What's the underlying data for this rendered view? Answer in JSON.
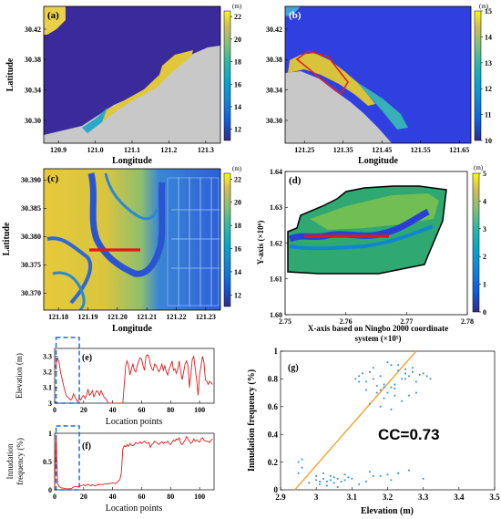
{
  "chart_data": [
    {
      "id": "a",
      "type": "heatmap",
      "panel_label": "(a)",
      "xlabel": "Longitude",
      "ylabel": "Latitude",
      "xlim": [
        120.86,
        121.34
      ],
      "ylim": [
        30.27,
        30.45
      ],
      "x_ticks": [
        "120.9",
        "121.0",
        "121.1",
        "121.2",
        "121.3"
      ],
      "x_tick_values": [
        120.9,
        121.0,
        121.1,
        121.2,
        121.3
      ],
      "y_ticks": [
        "30.42",
        "30.38",
        "30.34",
        "30.30"
      ],
      "y_tick_values": [
        30.42,
        30.38,
        30.34,
        30.3
      ],
      "colorbar": {
        "unit": "(m)",
        "min": 11,
        "max": 22.5,
        "ticks": [
          "22",
          "20",
          "18",
          "16",
          "14",
          "12"
        ],
        "tick_values": [
          22,
          20,
          18,
          16,
          14,
          12
        ]
      }
    },
    {
      "id": "b",
      "type": "heatmap",
      "panel_label": "(b)",
      "xlabel": "Longitude",
      "ylabel": "",
      "xlim": [
        121.2,
        121.68
      ],
      "ylim": [
        30.27,
        30.45
      ],
      "x_ticks": [
        "121.25",
        "121.35",
        "121.45",
        "121.55",
        "121.65"
      ],
      "x_tick_values": [
        121.25,
        121.35,
        121.45,
        121.55,
        121.65
      ],
      "y_ticks": [
        "30.42",
        "30.38",
        "30.34",
        "30.30"
      ],
      "y_tick_values": [
        30.42,
        30.38,
        30.34,
        30.3
      ],
      "colorbar": {
        "unit": "(m)",
        "min": 10,
        "max": 15,
        "ticks": [
          "15",
          "14",
          "13",
          "12",
          "11",
          "10"
        ],
        "tick_values": [
          15,
          14,
          13,
          12,
          11,
          10
        ]
      }
    },
    {
      "id": "c",
      "type": "heatmap",
      "panel_label": "(c)",
      "xlabel": "Longitude",
      "ylabel": "Latitude",
      "xlim": [
        121.175,
        121.235
      ],
      "ylim": [
        30.367,
        30.392
      ],
      "x_ticks": [
        "121.18",
        "121.19",
        "121.20",
        "121.21",
        "121.22",
        "121.23"
      ],
      "x_tick_values": [
        121.18,
        121.19,
        121.2,
        121.21,
        121.22,
        121.23
      ],
      "y_ticks": [
        "30.390",
        "30.385",
        "30.380",
        "30.375",
        "30.370"
      ],
      "y_tick_values": [
        30.39,
        30.385,
        30.38,
        30.375,
        30.37
      ],
      "colorbar": {
        "unit": "(m)",
        "min": 11,
        "max": 22.5,
        "ticks": [
          "22",
          "20",
          "18",
          "16",
          "14",
          "12"
        ],
        "tick_values": [
          22,
          20,
          18,
          16,
          14,
          12
        ]
      }
    },
    {
      "id": "d",
      "type": "heatmap",
      "panel_label": "(d)",
      "xlabel": "X-axis based on Ningbo 2000 coordinate system (×10⁵)",
      "ylabel": "Y-axis (×10⁶)",
      "xlim": [
        2.75,
        2.78
      ],
      "ylim": [
        1.6,
        1.64
      ],
      "x_ticks": [
        "2.75",
        "2.76",
        "2.77",
        "2.78"
      ],
      "x_tick_values": [
        2.75,
        2.76,
        2.77,
        2.78
      ],
      "y_ticks": [
        "1.64",
        "1.63",
        "1.62",
        "1.61",
        "1.60"
      ],
      "y_tick_values": [
        1.64,
        1.63,
        1.62,
        1.61,
        1.6
      ],
      "colorbar": {
        "unit": "(m)",
        "min": 0,
        "max": 5,
        "ticks": [
          "5",
          "4",
          "3",
          "2",
          "1",
          "0"
        ],
        "tick_values": [
          5,
          4,
          3,
          2,
          1,
          0
        ]
      }
    },
    {
      "id": "e",
      "type": "line",
      "panel_label": "(e)",
      "xlabel": "Location points",
      "ylabel": "Elevation (m)",
      "xlim": [
        0,
        110
      ],
      "ylim": [
        3,
        3.35
      ],
      "x_ticks": [
        "0",
        "20",
        "40",
        "60",
        "80",
        "100"
      ],
      "x_tick_values": [
        0,
        20,
        40,
        60,
        80,
        100
      ],
      "y_ticks": [
        "3",
        "3.1",
        "3.2",
        "3.3"
      ],
      "y_tick_values": [
        3,
        3.1,
        3.2,
        3.3
      ],
      "highlight_x": [
        1,
        17
      ],
      "series": [
        {
          "values": [
            3.22,
            3.25,
            3.29,
            3.26,
            3.2,
            3.16,
            3.12,
            3.08,
            3.05,
            3.04,
            3.03,
            3.02,
            3.03,
            3.06,
            3.04,
            3.02,
            3.01,
            3.03,
            3.02,
            3.04,
            3.05,
            3.03,
            3.05,
            3.09,
            3.05,
            3.06,
            3.08,
            3.04,
            3.06,
            3.08,
            3.07,
            3.05,
            3.08,
            3.06,
            3.04,
            3.03,
            3.02,
            3.0,
            3.0,
            3.0,
            3.0,
            3.0,
            3.0,
            3.0,
            3.0,
            3.0,
            3.0,
            3.0,
            3.12,
            3.24,
            3.27,
            3.24,
            3.18,
            3.22,
            3.25,
            3.21,
            3.2,
            3.24,
            3.27,
            3.29,
            3.28,
            3.24,
            3.21,
            3.3,
            3.31,
            3.3,
            3.25,
            3.22,
            3.21,
            3.25,
            3.24,
            3.22,
            3.2,
            3.22,
            3.25,
            3.21,
            3.24,
            3.2,
            3.18,
            3.22,
            3.24,
            3.27,
            3.21,
            3.22,
            3.19,
            3.22,
            3.27,
            3.2,
            3.15,
            3.2,
            3.25,
            3.27,
            3.24,
            3.1,
            3.18,
            3.28,
            3.3,
            3.22,
            3.15,
            3.05,
            3.18,
            3.24,
            3.3,
            3.26,
            3.15,
            3.14,
            3.12,
            3.14,
            3.13,
            3.12
          ]
        }
      ]
    },
    {
      "id": "f",
      "type": "line",
      "panel_label": "(f)",
      "xlabel": "Location points",
      "ylabel": "Innudation frequency (%)",
      "xlim": [
        0,
        110
      ],
      "ylim": [
        0,
        1
      ],
      "x_ticks": [
        "0",
        "20",
        "40",
        "60",
        "80",
        "100"
      ],
      "x_tick_values": [
        0,
        20,
        40,
        60,
        80,
        100
      ],
      "y_ticks": [
        "0",
        "0.5",
        "1"
      ],
      "y_tick_values": [
        0,
        0.5,
        1
      ],
      "highlight_x": [
        1,
        17
      ],
      "series": [
        {
          "values": [
            0.0,
            0.95,
            0.12,
            0.06,
            0.04,
            0.03,
            0.03,
            0.02,
            0.02,
            0.02,
            0.02,
            0.02,
            0.03,
            0.05,
            0.06,
            0.06,
            0.05,
            0.06,
            0.07,
            0.08,
            0.09,
            0.07,
            0.08,
            0.1,
            0.08,
            0.07,
            0.09,
            0.08,
            0.07,
            0.08,
            0.09,
            0.09,
            0.1,
            0.09,
            0.1,
            0.1,
            0.11,
            0.1,
            0.12,
            0.11,
            0.12,
            0.12,
            0.11,
            0.13,
            0.15,
            0.18,
            0.3,
            0.72,
            0.78,
            0.76,
            0.8,
            0.77,
            0.82,
            0.79,
            0.78,
            0.8,
            0.84,
            0.82,
            0.82,
            0.85,
            0.82,
            0.84,
            0.86,
            0.83,
            0.82,
            0.84,
            0.75,
            0.8,
            0.82,
            0.86,
            0.84,
            0.82,
            0.8,
            0.83,
            0.85,
            0.82,
            0.84,
            0.83,
            0.86,
            0.82,
            0.8,
            0.84,
            0.88,
            0.86,
            0.9,
            0.88,
            0.92,
            0.82,
            0.8,
            0.84,
            0.88,
            0.94,
            0.9,
            0.86,
            0.82,
            0.84,
            0.9,
            0.86,
            0.88,
            0.86,
            0.84,
            0.9,
            0.92,
            0.88,
            0.86,
            0.86,
            0.85,
            0.84,
            0.88,
            0.9
          ]
        }
      ]
    },
    {
      "id": "g",
      "type": "scatter",
      "panel_label": "(g)",
      "xlabel": "Elevation (m)",
      "ylabel": "Innudation frequency (%)",
      "xlim": [
        2.9,
        3.5
      ],
      "ylim": [
        0,
        1
      ],
      "x_ticks": [
        "2.9",
        "3",
        "3.1",
        "3.2",
        "3.3",
        "3.4",
        "3.5"
      ],
      "x_tick_values": [
        2.9,
        3.0,
        3.1,
        3.2,
        3.3,
        3.4,
        3.5
      ],
      "y_ticks": [
        "0",
        "0.2",
        "0.4",
        "0.6",
        "0.8",
        "1"
      ],
      "y_tick_values": [
        0,
        0.2,
        0.4,
        0.6,
        0.8,
        1
      ],
      "annotation": "CC=0.73",
      "fit_line": {
        "x": [
          2.94,
          3.28
        ],
        "y": [
          0.0,
          1.0
        ]
      },
      "points": {
        "x": [
          2.95,
          2.96,
          2.95,
          2.96,
          2.98,
          3.0,
          3.01,
          3.02,
          3.03,
          3.04,
          3.05,
          3.06,
          3.07,
          3.08,
          3.0,
          3.02,
          3.05,
          3.03,
          3.06,
          3.09,
          3.01,
          3.04,
          3.08,
          3.11,
          3.12,
          3.14,
          3.15,
          3.16,
          3.17,
          3.18,
          3.19,
          3.2,
          3.21,
          3.22,
          3.13,
          3.16,
          3.18,
          3.21,
          3.23,
          3.25,
          3.27,
          3.12,
          3.14,
          3.17,
          3.19,
          3.22,
          3.24,
          3.26,
          3.28,
          3.3,
          3.31,
          3.32,
          3.2,
          3.23,
          3.25,
          3.27,
          3.29,
          3.15,
          3.18,
          3.21,
          3.24,
          3.26,
          3.28,
          3.22,
          3.25,
          3.19,
          3.16,
          3.23,
          3.1,
          3.14,
          3.18,
          3.21,
          3.23,
          3.26,
          3.3,
          3.12,
          3.15,
          3.2
        ],
        "y": [
          0.2,
          0.16,
          0.12,
          0.22,
          0.05,
          0.07,
          0.06,
          0.08,
          0.06,
          0.07,
          0.09,
          0.08,
          0.06,
          0.07,
          0.1,
          0.12,
          0.05,
          0.03,
          0.02,
          0.09,
          0.04,
          0.1,
          0.11,
          0.8,
          0.82,
          0.78,
          0.85,
          0.8,
          0.75,
          0.72,
          0.76,
          0.7,
          0.74,
          0.68,
          0.84,
          0.88,
          0.82,
          0.9,
          0.86,
          0.84,
          0.88,
          0.78,
          0.72,
          0.7,
          0.66,
          0.73,
          0.8,
          0.82,
          0.78,
          0.84,
          0.82,
          0.8,
          0.92,
          0.9,
          0.87,
          0.85,
          0.83,
          0.62,
          0.6,
          0.58,
          0.64,
          0.68,
          0.7,
          0.76,
          0.8,
          0.74,
          0.1,
          0.12,
          0.08,
          0.06,
          0.1,
          0.07,
          0.12,
          0.14,
          0.08,
          0.04,
          0.13,
          0.11
        ]
      }
    }
  ]
}
